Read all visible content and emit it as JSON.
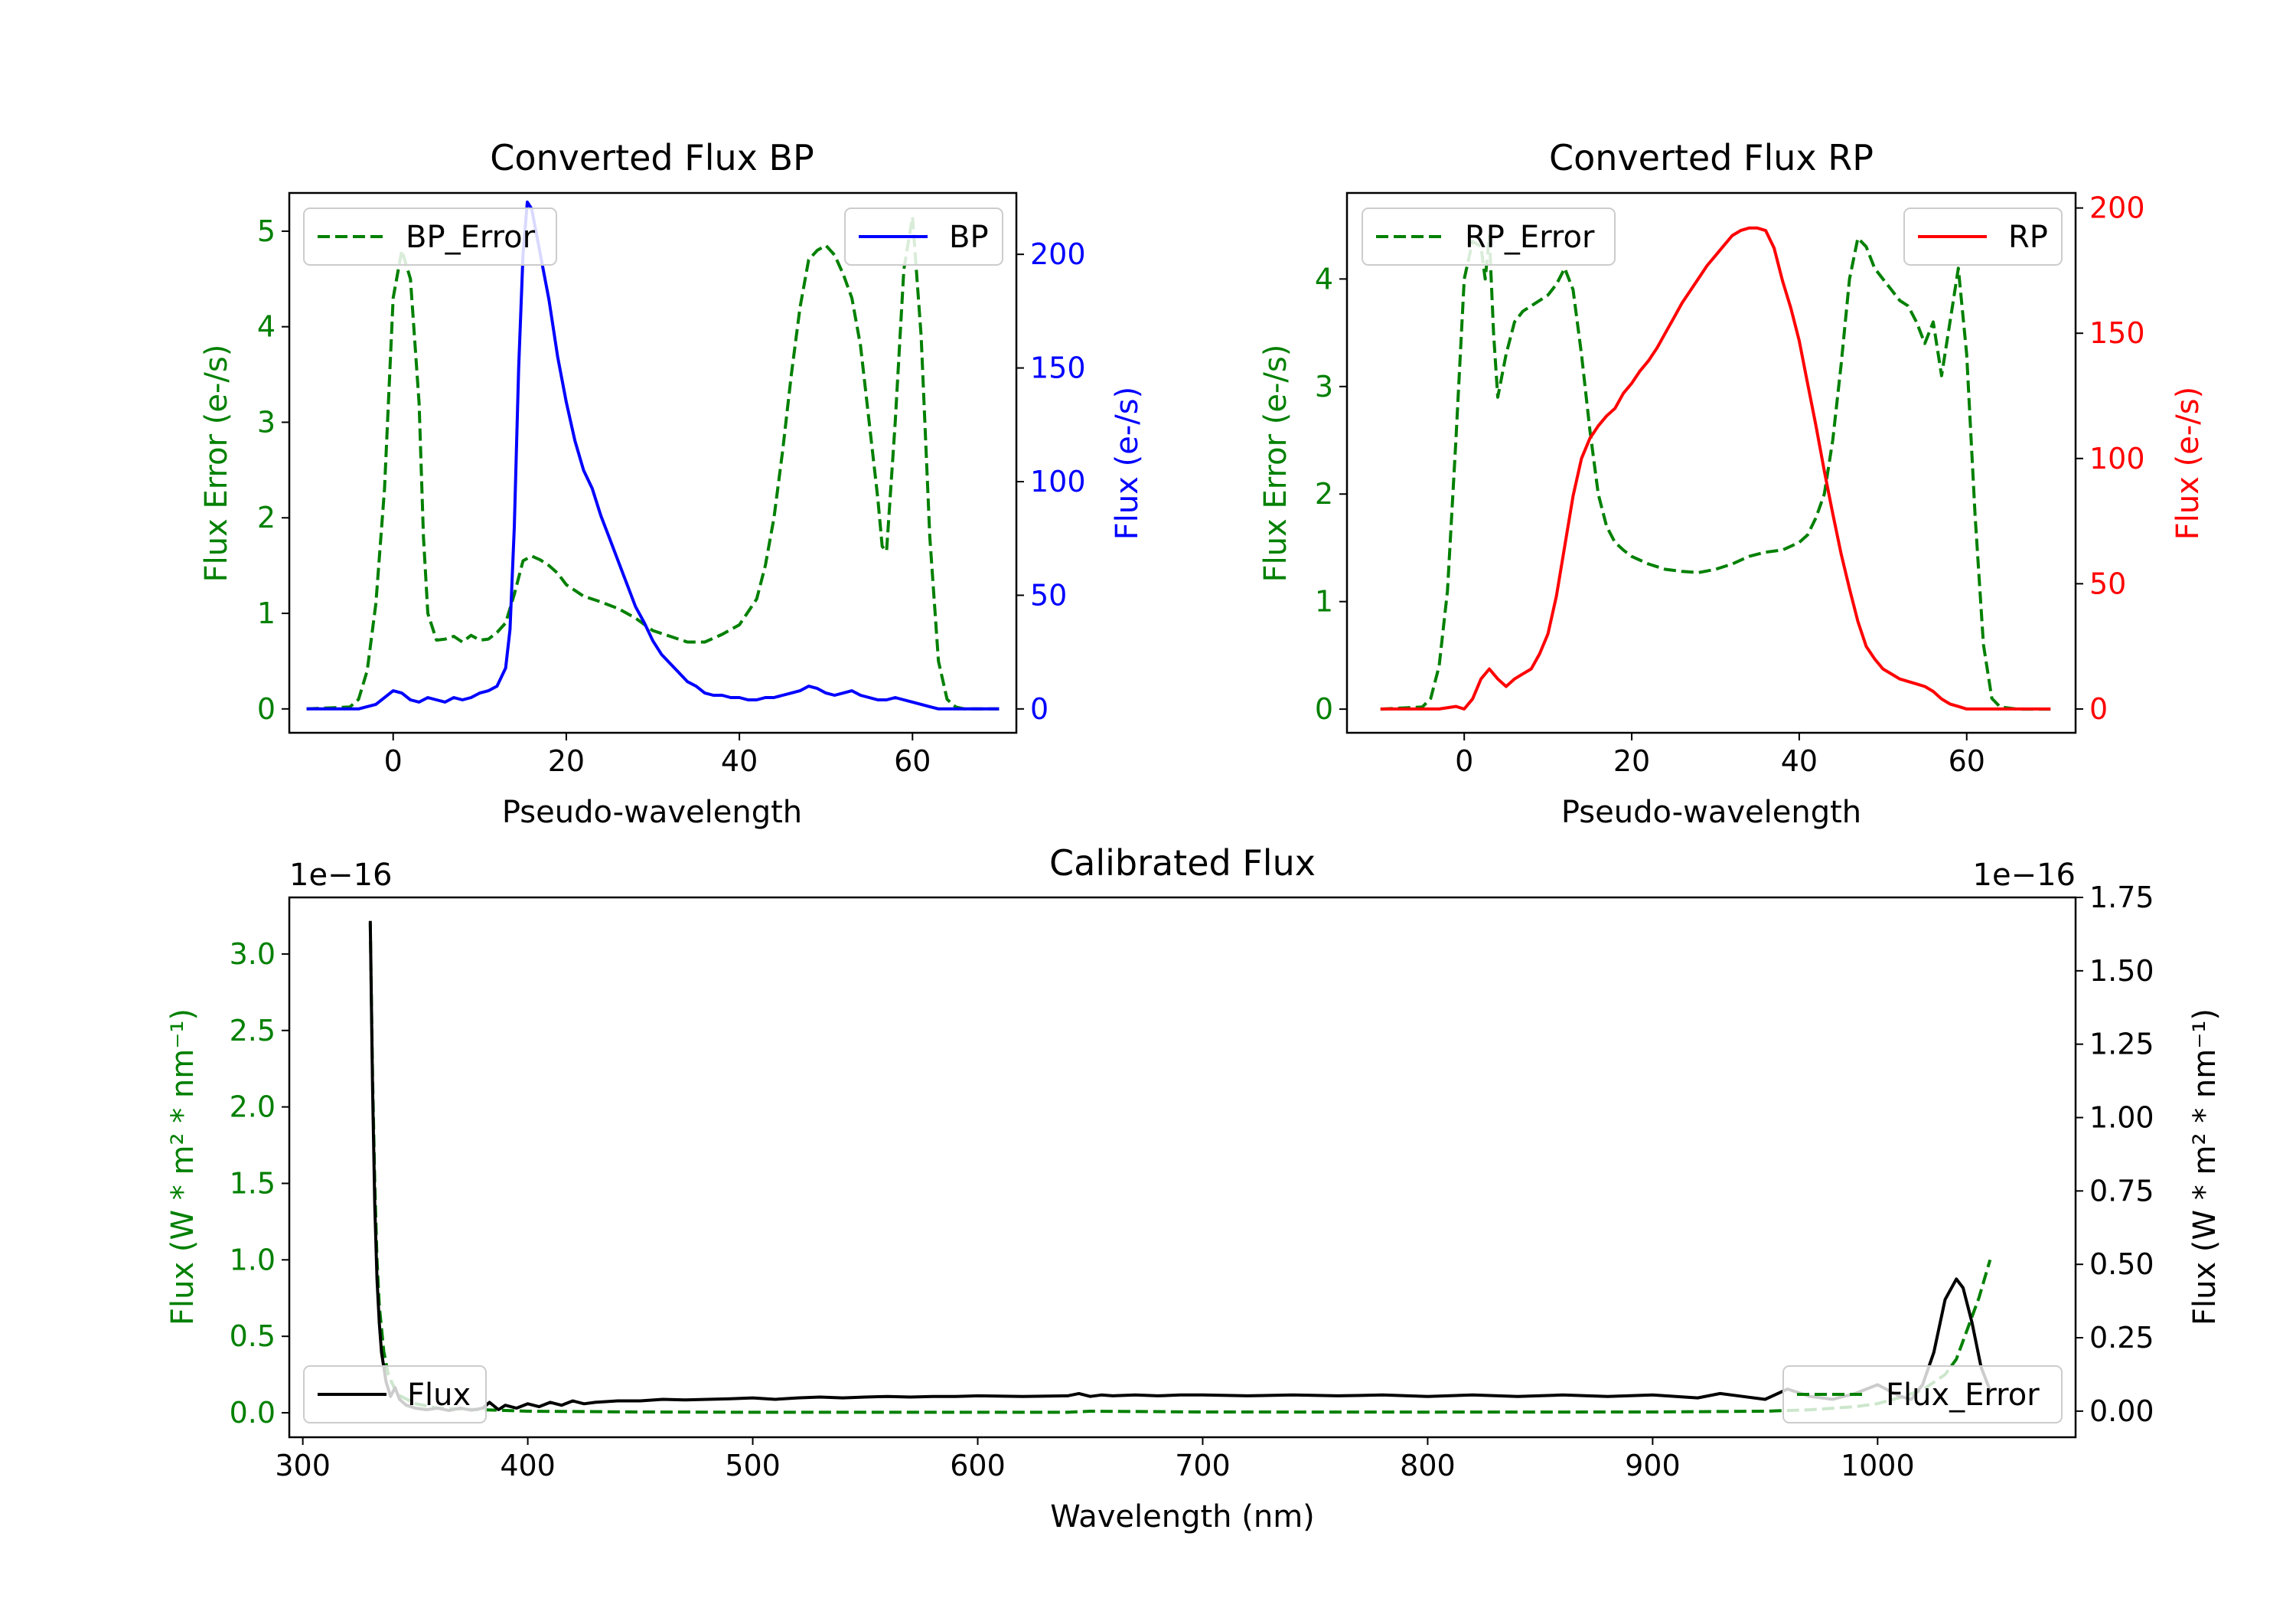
{
  "chart_data": [
    {
      "type": "line",
      "title": "Converted Flux BP",
      "xlabel": "Pseudo-wavelength",
      "ylabel_left": "Flux Error (e-/s)",
      "ylabel_right": "Flux (e-/s)",
      "xlim": [
        -12,
        72
      ],
      "ylim_left": [
        -0.25,
        5.4
      ],
      "ylim_right": [
        -10.5,
        227
      ],
      "xticks": [
        "0",
        "20",
        "40",
        "60"
      ],
      "yticks_left": [
        "0",
        "1",
        "2",
        "3",
        "4",
        "5"
      ],
      "yticks_right": [
        "0",
        "50",
        "100",
        "150",
        "200"
      ],
      "legend_left": {
        "label": "BP_Error",
        "placement": "upper left"
      },
      "legend_right": {
        "label": "BP",
        "placement": "upper right"
      },
      "series": [
        {
          "name": "BP_Error",
          "axis": "left",
          "color": "#008000",
          "dashed": true,
          "x": [
            -10,
            -5,
            -4,
            -3,
            -2,
            -1,
            0,
            1,
            2,
            3,
            3.5,
            4,
            5,
            6,
            7,
            8,
            9,
            10,
            11,
            12,
            13,
            14,
            15,
            16,
            17,
            18,
            19,
            20,
            22,
            24,
            26,
            28,
            30,
            32,
            34,
            36,
            38,
            40,
            42,
            43,
            44,
            45,
            46,
            47,
            48,
            49,
            50,
            51,
            52,
            53,
            54,
            55,
            56,
            56.5,
            57,
            58,
            59,
            60,
            61,
            62,
            63,
            64,
            65,
            66,
            68,
            70
          ],
          "y": [
            0,
            0.02,
            0.1,
            0.4,
            1.1,
            2.3,
            4.3,
            4.8,
            4.5,
            3.2,
            1.8,
            1.0,
            0.72,
            0.73,
            0.76,
            0.7,
            0.77,
            0.72,
            0.73,
            0.8,
            0.9,
            1.2,
            1.55,
            1.6,
            1.56,
            1.5,
            1.42,
            1.3,
            1.18,
            1.12,
            1.05,
            0.95,
            0.82,
            0.76,
            0.7,
            0.7,
            0.78,
            0.88,
            1.15,
            1.5,
            2.0,
            2.7,
            3.5,
            4.2,
            4.7,
            4.8,
            4.85,
            4.75,
            4.55,
            4.3,
            3.8,
            3.0,
            2.2,
            1.7,
            1.65,
            3.0,
            4.6,
            5.15,
            3.9,
            1.8,
            0.5,
            0.1,
            0.02,
            0,
            0,
            0
          ]
        },
        {
          "name": "BP",
          "axis": "right",
          "color": "#0000ff",
          "dashed": false,
          "x": [
            -10,
            -4,
            -2,
            0,
            1,
            2,
            3,
            4,
            5,
            6,
            7,
            8,
            9,
            10,
            11,
            12,
            13,
            13.5,
            14,
            14.5,
            15,
            15.5,
            16,
            17,
            18,
            19,
            20,
            21,
            22,
            23,
            24,
            25,
            26,
            27,
            28,
            29,
            30,
            31,
            32,
            33,
            34,
            35,
            36,
            37,
            38,
            39,
            40,
            41,
            42,
            43,
            44,
            45,
            46,
            47,
            48,
            49,
            50,
            51,
            52,
            53,
            54,
            55,
            56,
            57,
            58,
            59,
            60,
            61,
            62,
            63,
            64,
            66,
            68,
            70
          ],
          "y": [
            0,
            0,
            2,
            8,
            7,
            4,
            3,
            5,
            4,
            3,
            5,
            4,
            5,
            7,
            8,
            10,
            18,
            35,
            80,
            150,
            200,
            223,
            220,
            200,
            180,
            155,
            135,
            118,
            105,
            97,
            85,
            75,
            65,
            55,
            45,
            38,
            30,
            24,
            20,
            16,
            12,
            10,
            7,
            6,
            6,
            5,
            5,
            4,
            4,
            5,
            5,
            6,
            7,
            8,
            10,
            9,
            7,
            6,
            7,
            8,
            6,
            5,
            4,
            4,
            5,
            4,
            3,
            2,
            1,
            0,
            0,
            0,
            0,
            0
          ]
        }
      ]
    },
    {
      "type": "line",
      "title": "Converted Flux RP",
      "xlabel": "Pseudo-wavelength",
      "ylabel_left": "Flux Error (e-/s)",
      "ylabel_right": "Flux (e-/s)",
      "xlim": [
        -14,
        73
      ],
      "ylim_left": [
        -0.22,
        4.8
      ],
      "ylim_right": [
        -9.5,
        206
      ],
      "xticks": [
        "0",
        "20",
        "40",
        "60"
      ],
      "yticks_left": [
        "0",
        "1",
        "2",
        "3",
        "4"
      ],
      "yticks_right": [
        "0",
        "50",
        "100",
        "150",
        "200"
      ],
      "legend_left": {
        "label": "RP_Error",
        "placement": "upper left"
      },
      "legend_right": {
        "label": "RP",
        "placement": "upper right"
      },
      "series": [
        {
          "name": "RP_Error",
          "axis": "left",
          "color": "#008000",
          "dashed": true,
          "x": [
            -10,
            -5,
            -4,
            -3,
            -2,
            -1,
            0,
            1,
            2,
            2.5,
            3,
            3.5,
            4,
            5,
            6,
            7,
            8,
            9,
            10,
            11,
            12,
            13,
            14,
            15,
            16,
            17,
            18,
            19,
            20,
            22,
            24,
            26,
            28,
            30,
            32,
            34,
            36,
            38,
            40,
            41,
            42,
            43,
            44,
            45,
            46,
            47,
            48,
            49,
            50,
            51,
            52,
            53,
            54,
            55,
            56,
            57,
            58,
            59,
            60,
            61,
            62,
            63,
            64,
            66,
            68,
            70
          ],
          "y": [
            0,
            0.02,
            0.1,
            0.4,
            1.1,
            2.5,
            4.0,
            4.35,
            4.3,
            4.0,
            4.4,
            3.5,
            2.9,
            3.3,
            3.6,
            3.7,
            3.75,
            3.8,
            3.85,
            3.95,
            4.1,
            3.9,
            3.3,
            2.6,
            2.0,
            1.7,
            1.55,
            1.48,
            1.42,
            1.35,
            1.3,
            1.28,
            1.27,
            1.3,
            1.35,
            1.42,
            1.46,
            1.48,
            1.55,
            1.62,
            1.78,
            2.0,
            2.5,
            3.2,
            4.0,
            4.38,
            4.3,
            4.1,
            4.0,
            3.9,
            3.8,
            3.75,
            3.6,
            3.4,
            3.6,
            3.1,
            3.6,
            4.1,
            3.3,
            1.8,
            0.6,
            0.1,
            0.02,
            0,
            0,
            0
          ]
        },
        {
          "name": "RP",
          "axis": "right",
          "color": "#ff0000",
          "dashed": false,
          "x": [
            -10,
            -3,
            -1,
            0,
            1,
            2,
            3,
            4,
            5,
            6,
            7,
            8,
            9,
            10,
            11,
            12,
            13,
            14,
            15,
            16,
            17,
            18,
            19,
            20,
            21,
            22,
            23,
            24,
            25,
            26,
            27,
            28,
            29,
            30,
            31,
            32,
            33,
            34,
            35,
            36,
            37,
            38,
            39,
            40,
            41,
            42,
            43,
            44,
            45,
            46,
            47,
            48,
            49,
            50,
            51,
            52,
            53,
            54,
            55,
            56,
            57,
            58,
            59,
            60,
            62,
            64,
            66,
            68,
            70
          ],
          "y": [
            0,
            0,
            1,
            0,
            4,
            12,
            16,
            12,
            9,
            12,
            14,
            16,
            22,
            30,
            45,
            65,
            85,
            100,
            108,
            113,
            117,
            120,
            126,
            130,
            135,
            139,
            144,
            150,
            156,
            162,
            167,
            172,
            177,
            181,
            185,
            189,
            191,
            192,
            192,
            191,
            184,
            171,
            160,
            147,
            130,
            113,
            95,
            78,
            62,
            48,
            35,
            25,
            20,
            16,
            14,
            12,
            11,
            10,
            9,
            7,
            4,
            2,
            1,
            0,
            0,
            0,
            0,
            0,
            0
          ]
        }
      ]
    },
    {
      "type": "line",
      "title": "Calibrated Flux",
      "xlabel": "Wavelength (nm)",
      "ylabel_left": "Flux (W * m² * nm⁻¹)",
      "ylabel_right": "Flux (W * m² * nm⁻¹)",
      "offset_left": "1e−16",
      "offset_right": "1e−16",
      "xlim": [
        294,
        1088
      ],
      "ylim_left": [
        -0.16,
        3.37
      ],
      "ylim_right": [
        -0.089,
        1.75
      ],
      "xticks": [
        "300",
        "400",
        "500",
        "600",
        "700",
        "800",
        "900",
        "1000"
      ],
      "yticks_left": [
        "0.0",
        "0.5",
        "1.0",
        "1.5",
        "2.0",
        "2.5",
        "3.0"
      ],
      "yticks_right": [
        "0.00",
        "0.25",
        "0.50",
        "0.75",
        "1.00",
        "1.25",
        "1.50",
        "1.75"
      ],
      "legend_left": {
        "label": "Flux",
        "placement": "lower left"
      },
      "legend_right": {
        "label": "Flux_Error",
        "placement": "lower right"
      },
      "series": [
        {
          "name": "Flux_Error",
          "axis": "left",
          "color": "#008000",
          "dashed": true,
          "x": [
            330,
            331,
            332,
            333,
            334,
            336,
            338,
            342,
            350,
            360,
            380,
            400,
            450,
            500,
            600,
            640,
            650,
            700,
            800,
            900,
            950,
            970,
            990,
            1000,
            1010,
            1020,
            1030,
            1035,
            1040,
            1045,
            1050
          ],
          "y": [
            3.2,
            2.2,
            1.5,
            1.0,
            0.7,
            0.4,
            0.25,
            0.12,
            0.06,
            0.03,
            0.02,
            0.01,
            0.005,
            0.003,
            0.003,
            0.003,
            0.01,
            0.005,
            0.004,
            0.005,
            0.01,
            0.02,
            0.04,
            0.06,
            0.1,
            0.15,
            0.25,
            0.35,
            0.55,
            0.75,
            1.0
          ]
        },
        {
          "name": "Flux",
          "axis": "right",
          "color": "#000000",
          "dashed": false,
          "x": [
            330,
            331,
            332,
            333,
            334,
            335,
            337,
            339,
            341,
            343,
            346,
            350,
            355,
            360,
            365,
            370,
            375,
            380,
            383,
            387,
            390,
            395,
            400,
            405,
            410,
            415,
            420,
            425,
            430,
            440,
            450,
            460,
            470,
            480,
            490,
            500,
            510,
            520,
            530,
            540,
            550,
            560,
            570,
            580,
            590,
            600,
            620,
            640,
            645,
            650,
            655,
            660,
            670,
            680,
            690,
            700,
            720,
            740,
            760,
            780,
            800,
            820,
            840,
            860,
            880,
            900,
            920,
            930,
            940,
            950,
            960,
            970,
            980,
            990,
            1000,
            1010,
            1015,
            1020,
            1025,
            1030,
            1035,
            1038,
            1042,
            1046,
            1050
          ],
          "y": [
            1.67,
            1.1,
            0.7,
            0.45,
            0.3,
            0.2,
            0.1,
            0.05,
            0.08,
            0.04,
            0.02,
            0.01,
            0.005,
            0.01,
            0.002,
            0.01,
            0.003,
            0.01,
            0.03,
            0.005,
            0.02,
            0.01,
            0.025,
            0.015,
            0.03,
            0.02,
            0.035,
            0.025,
            0.03,
            0.035,
            0.035,
            0.04,
            0.038,
            0.04,
            0.042,
            0.045,
            0.04,
            0.045,
            0.048,
            0.045,
            0.048,
            0.05,
            0.048,
            0.05,
            0.05,
            0.052,
            0.05,
            0.052,
            0.06,
            0.05,
            0.055,
            0.052,
            0.055,
            0.052,
            0.055,
            0.055,
            0.052,
            0.055,
            0.052,
            0.055,
            0.05,
            0.055,
            0.05,
            0.055,
            0.05,
            0.055,
            0.045,
            0.06,
            0.05,
            0.04,
            0.075,
            0.05,
            0.04,
            0.06,
            0.09,
            0.05,
            0.04,
            0.09,
            0.2,
            0.38,
            0.45,
            0.42,
            0.3,
            0.15,
            0.07
          ]
        }
      ]
    }
  ]
}
